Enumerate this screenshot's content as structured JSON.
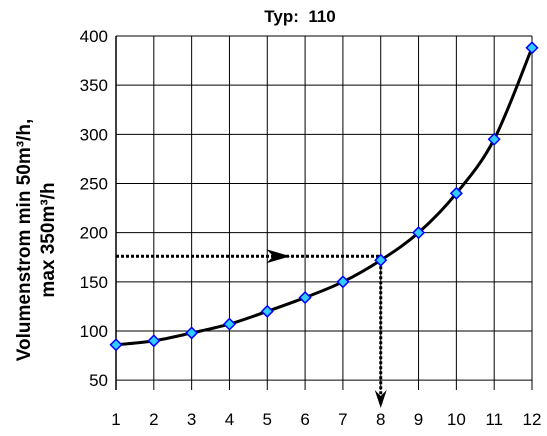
{
  "chart_data": {
    "type": "line",
    "title": "Typ:  110",
    "ylabel_line1": "Volumenstrom min 50m³/h,",
    "ylabel_line2": "max 350m³/h",
    "xlabel": "",
    "x": [
      1,
      2,
      3,
      4,
      5,
      6,
      7,
      8,
      9,
      10,
      11,
      12
    ],
    "series": [
      {
        "values": [
          86,
          90,
          98,
          107,
          120,
          134,
          150,
          172,
          200,
          240,
          295,
          388
        ]
      }
    ],
    "x_ticks": [
      "1",
      "2",
      "3",
      "4",
      "5",
      "6",
      "7",
      "8",
      "9",
      "10",
      "11",
      "12"
    ],
    "y_ticks": [
      "50",
      "100",
      "150",
      "200",
      "250",
      "300",
      "350",
      "400"
    ],
    "xlim": [
      1,
      12
    ],
    "ylim": [
      40,
      400
    ],
    "grid": true,
    "annotation": {
      "from_y": 176,
      "at_x": 8,
      "arrow_to": "x-axis"
    },
    "colors": {
      "line": "#000000",
      "marker_fill": "#33ccff",
      "marker_stroke": "#0000ff",
      "grid": "#000000"
    }
  }
}
